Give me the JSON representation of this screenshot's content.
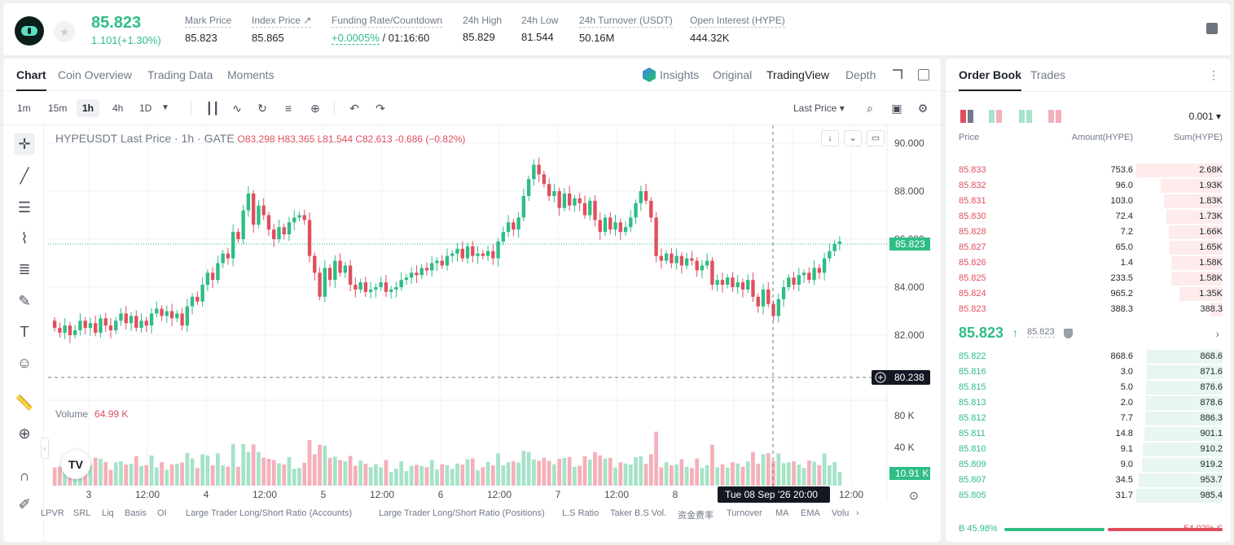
{
  "header": {
    "last_price": "85.823",
    "change": "1.101(+1.30%)",
    "stats": [
      {
        "label": "Mark Price",
        "value": "85.823"
      },
      {
        "label": "Index Price ↗",
        "value": "85.865"
      },
      {
        "label": "Funding Rate/Countdown",
        "value_green": "+0.0005%",
        "value_rest": " / 01:16:60"
      },
      {
        "label": "24h High",
        "value": "85.829"
      },
      {
        "label": "24h Low",
        "value": "81.544"
      },
      {
        "label": "24h Turnover (USDT)",
        "value": "50.16M"
      },
      {
        "label": "Open Interest (HYPE)",
        "value": "444.32K"
      }
    ]
  },
  "chart_tabs": [
    "Chart",
    "Coin Overview",
    "Trading Data",
    "Moments"
  ],
  "view_tabs": [
    "Insights",
    "Original",
    "TradingView",
    "Depth"
  ],
  "timeframes": [
    "1m",
    "15m",
    "1h",
    "4h",
    "1D"
  ],
  "price_type": "Last Price",
  "legend": {
    "symbol": "HYPEUSDT Last Price · 1h · GATE",
    "ohlc": "O83.298  H83.365  L81.544  C82.613  -0.686 (−0.82%)"
  },
  "volume_legend": {
    "label": "Volume",
    "value": "64.99 K"
  },
  "price_axis": [
    "90.000",
    "88.000",
    "86.000",
    "84.000",
    "82.000"
  ],
  "current_price_tag": "85.823",
  "crosshair_price_tag": "80.238",
  "volume_axis": [
    "80 K",
    "40 K"
  ],
  "volume_tag": "10.91 K",
  "time_axis": [
    "3",
    "12:00",
    "4",
    "12:00",
    "5",
    "12:00",
    "6",
    "12:00",
    "7",
    "12:00",
    "8",
    "12:00"
  ],
  "crosshair_time": "Tue 08 Sep '26   20:00",
  "bottom_indicators": [
    "LPVR",
    "SRL",
    "Liq",
    "Basis",
    "OI",
    "Large Trader Long/Short Ratio (Accounts)",
    "Large Trader Long/Short Ratio (Positions)",
    "L.S Ratio",
    "Taker B.S Vol.",
    "资金费率",
    "Turnover",
    "MA",
    "EMA",
    "Volu"
  ],
  "orderbook": {
    "tabs": [
      "Order Book",
      "Trades"
    ],
    "precision": "0.001 ▾",
    "headers": [
      "Price",
      "Amount(HYPE)",
      "Sum(HYPE)"
    ],
    "asks": [
      {
        "price": "85.833",
        "amount": "753.6",
        "sum": "2.68K",
        "depth": 1.0
      },
      {
        "price": "85.832",
        "amount": "96.0",
        "sum": "1.93K",
        "depth": 0.72
      },
      {
        "price": "85.831",
        "amount": "103.0",
        "sum": "1.83K",
        "depth": 0.68
      },
      {
        "price": "85.830",
        "amount": "72.4",
        "sum": "1.73K",
        "depth": 0.65
      },
      {
        "price": "85.828",
        "amount": "7.2",
        "sum": "1.66K",
        "depth": 0.62
      },
      {
        "price": "85.827",
        "amount": "65.0",
        "sum": "1.65K",
        "depth": 0.61
      },
      {
        "price": "85.826",
        "amount": "1.4",
        "sum": "1.58K",
        "depth": 0.59
      },
      {
        "price": "85.825",
        "amount": "233.5",
        "sum": "1.58K",
        "depth": 0.59
      },
      {
        "price": "85.824",
        "amount": "965.2",
        "sum": "1.35K",
        "depth": 0.5
      },
      {
        "price": "85.823",
        "amount": "388.3",
        "sum": "388.3",
        "depth": 0.14
      }
    ],
    "mid_price": "85.823",
    "mark_price": "85.823",
    "bids": [
      {
        "price": "85.822",
        "amount": "868.6",
        "sum": "868.6",
        "depth": 0.88
      },
      {
        "price": "85.816",
        "amount": "3.0",
        "sum": "871.6",
        "depth": 0.88
      },
      {
        "price": "85.815",
        "amount": "5.0",
        "sum": "876.6",
        "depth": 0.89
      },
      {
        "price": "85.813",
        "amount": "2.0",
        "sum": "878.6",
        "depth": 0.89
      },
      {
        "price": "85.812",
        "amount": "7.7",
        "sum": "886.3",
        "depth": 0.9
      },
      {
        "price": "85.811",
        "amount": "14.8",
        "sum": "901.1",
        "depth": 0.91
      },
      {
        "price": "85.810",
        "amount": "9.1",
        "sum": "910.2",
        "depth": 0.92
      },
      {
        "price": "85.809",
        "amount": "9.0",
        "sum": "919.2",
        "depth": 0.93
      },
      {
        "price": "85.807",
        "amount": "34.5",
        "sum": "953.7",
        "depth": 0.97
      },
      {
        "price": "85.805",
        "amount": "31.7",
        "sum": "985.4",
        "depth": 1.0
      }
    ],
    "buy_ratio": "B 45.98%",
    "sell_ratio": "54.02% S",
    "buy_fraction": 0.4598
  },
  "colors": {
    "up": "#2ebd85",
    "down": "#e04f5f",
    "up_vol": "#a6e3c8",
    "down_vol": "#f4b0b8"
  }
}
